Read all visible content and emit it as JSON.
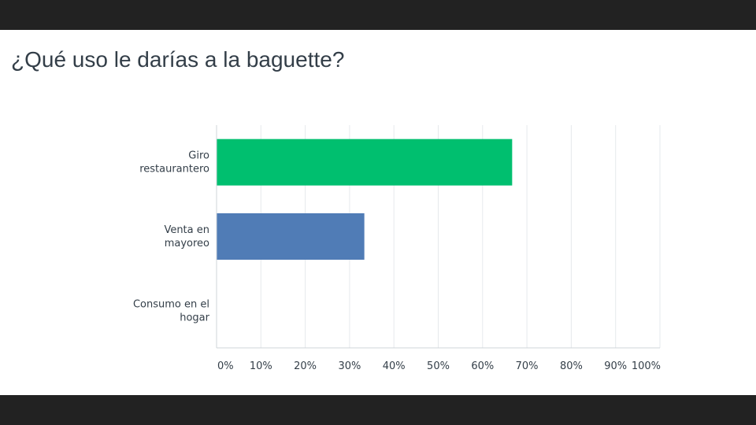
{
  "chart_data": {
    "type": "bar",
    "orientation": "horizontal",
    "title": "¿Qué uso le darías a la baguette?",
    "categories": [
      "Giro restaurantero",
      "Venta en mayoreo",
      "Consumo en el hogar"
    ],
    "category_lines": [
      [
        "Giro",
        "restaurantero"
      ],
      [
        "Venta en",
        "mayoreo"
      ],
      [
        "Consumo en el",
        "hogar"
      ]
    ],
    "values": [
      66.67,
      33.33,
      0
    ],
    "bar_colors": [
      "#00bf6f",
      "#507cb6",
      "#f9be00"
    ],
    "xlim": [
      0,
      100
    ],
    "x_ticks": [
      0,
      10,
      20,
      30,
      40,
      50,
      60,
      70,
      80,
      90,
      100
    ],
    "x_tick_labels": [
      "0%",
      "10%",
      "20%",
      "30%",
      "40%",
      "50%",
      "60%",
      "70%",
      "80%",
      "90%",
      "100%"
    ],
    "grid": true
  }
}
